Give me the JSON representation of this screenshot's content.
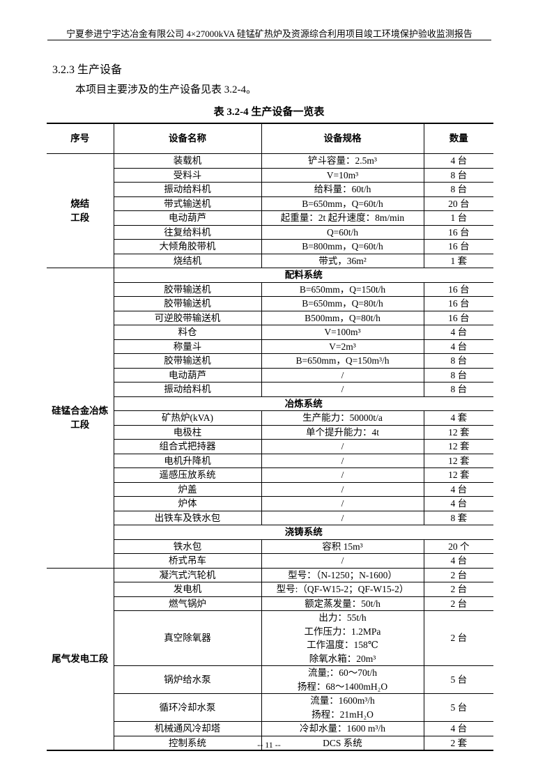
{
  "header": {
    "title": "宁夏参进宁宇达冶金有限公司 4×27000kVA 硅锰矿热炉及资源综合利用项目竣工环境保护验收监测报告"
  },
  "section": {
    "heading": "3.2.3 生产设备",
    "paragraph": "本项目主要涉及的生产设备见表 3.2-4。"
  },
  "table": {
    "caption": "表 3.2-4    生产设备一览表",
    "columns": [
      "序号",
      "设备名称",
      "设备规格",
      "数量"
    ],
    "groups": [
      {
        "name": "烧结\n工段",
        "rows": [
          {
            "name": "装载机",
            "spec": "铲斗容量：2.5m³",
            "qty": "4 台"
          },
          {
            "name": "受料斗",
            "spec": "V=10m³",
            "qty": "8 台"
          },
          {
            "name": "振动给料机",
            "spec": "给料量：60t/h",
            "qty": "8 台"
          },
          {
            "name": "带式输送机",
            "spec": "B=650mm，Q=60t/h",
            "qty": "20 台"
          },
          {
            "name": "电动葫芦",
            "spec": "起重量：2t 起升速度：8m/min",
            "qty": "1 台"
          },
          {
            "name": "往复给料机",
            "spec": "Q=60t/h",
            "qty": "16 台"
          },
          {
            "name": "大倾角胶带机",
            "spec": "B=800mm，Q=60t/h",
            "qty": "16 台"
          },
          {
            "name": "烧结机",
            "spec": "带式，36m²",
            "qty": "1 套"
          }
        ]
      },
      {
        "name": "硅锰合金冶炼\n工段",
        "rows": [
          {
            "subheader": "配料系统"
          },
          {
            "name": "胶带输送机",
            "spec": "B=650mm，Q=150t/h",
            "qty": "16 台"
          },
          {
            "name": "胶带输送机",
            "spec": "B=650mm，Q=80t/h",
            "qty": "16 台"
          },
          {
            "name": "可逆胶带输送机",
            "spec": "B500mm，Q=80t/h",
            "qty": "16 台"
          },
          {
            "name": "料仓",
            "spec": "V=100m³",
            "qty": "4 台"
          },
          {
            "name": "称量斗",
            "spec": "V=2m³",
            "qty": "4 台"
          },
          {
            "name": "胶带输送机",
            "spec": "B=650mm，Q=150m³/h",
            "qty": "8 台"
          },
          {
            "name": "电动葫芦",
            "spec": "/",
            "qty": "8 台"
          },
          {
            "name": "振动给料机",
            "spec": "/",
            "qty": "8 台"
          },
          {
            "subheader": "冶炼系统"
          },
          {
            "name": "矿热炉(kVA)",
            "spec": "生产能力：50000t/a",
            "qty": "4 套"
          },
          {
            "name": "电极柱",
            "spec": "单个提升能力：4t",
            "qty": "12 套"
          },
          {
            "name": "组合式把持器",
            "spec": "/",
            "qty": "12 套"
          },
          {
            "name": "电机升降机",
            "spec": "/",
            "qty": "12 套"
          },
          {
            "name": "遥感压放系统",
            "spec": "/",
            "qty": "12 套"
          },
          {
            "name": "炉盖",
            "spec": "/",
            "qty": "4 台"
          },
          {
            "name": "炉体",
            "spec": "/",
            "qty": "4 台"
          },
          {
            "name": "出铁车及铁水包",
            "spec": "/",
            "qty": "8 套"
          },
          {
            "subheader": "浇铸系统"
          },
          {
            "name": "铁水包",
            "spec": "容积 15m³",
            "qty": "20 个"
          },
          {
            "name": "桥式吊车",
            "spec": "/",
            "qty": "4 台"
          }
        ]
      },
      {
        "name": "尾气发电工段",
        "rows": [
          {
            "name": "凝汽式汽轮机",
            "spec": "型号：（N-1250；N-1600）",
            "qty": "2 台"
          },
          {
            "name": "发电机",
            "spec": "型号:（QF-W15-2；QF-W15-2）",
            "qty": "2 台"
          },
          {
            "name": "燃气锅炉",
            "spec": "额定蒸发量：50t/h",
            "qty": "2 台"
          },
          {
            "name": "真空除氧器",
            "spec": "出力：55t/h\n工作压力：1.2MPa\n工作温度：158℃\n除氧水箱：20m³",
            "qty": "2 台"
          },
          {
            "name": "锅炉给水泵",
            "spec": "流量;：60～70t/h\n扬程：68～1400mH₂O",
            "qty": "5 台"
          },
          {
            "name": "循环冷却水泵",
            "spec": "流量：1600m³/h\n扬程：21mH₂O",
            "qty": "5 台"
          },
          {
            "name": "机械通风冷却塔",
            "spec": "冷却水量：1600 m³/h",
            "qty": "4 台"
          },
          {
            "name": "控制系统",
            "spec": "DCS 系统",
            "qty": "2 套"
          }
        ]
      }
    ]
  },
  "footer": {
    "page": "-- 11 --"
  }
}
